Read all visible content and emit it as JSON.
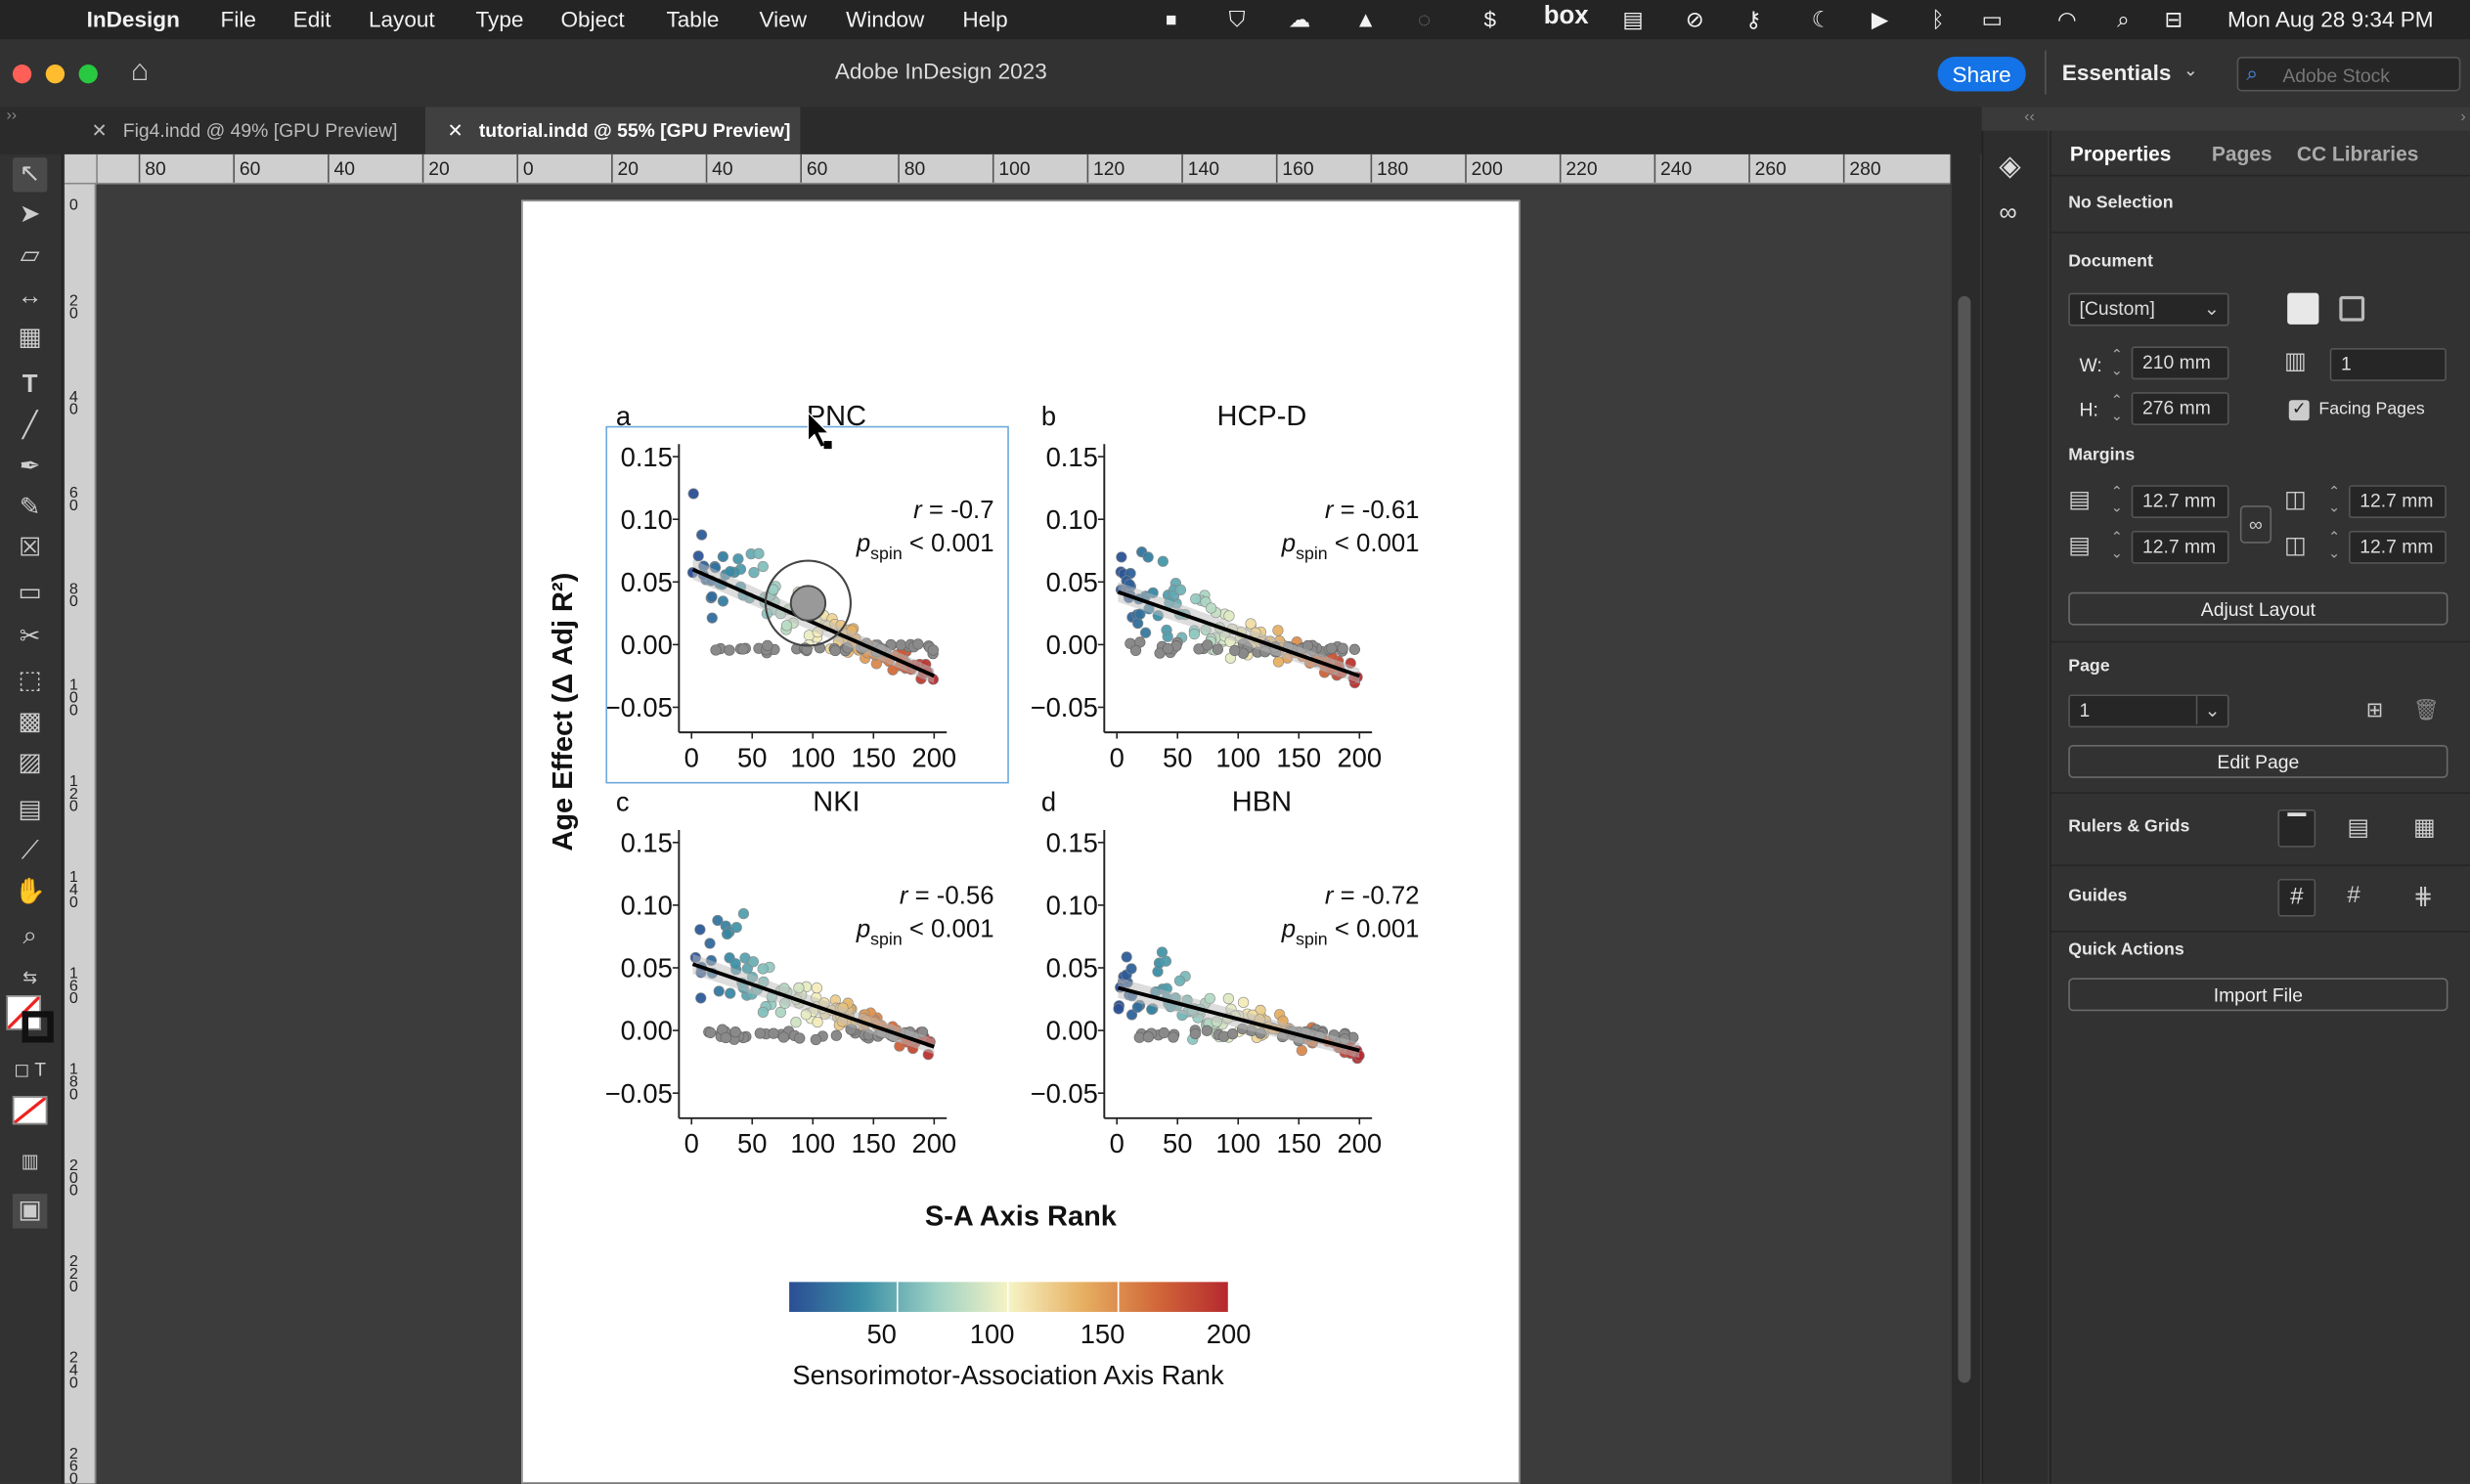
{
  "menubar": {
    "app_name": "InDesign",
    "items": [
      "File",
      "Edit",
      "Layout",
      "Type",
      "Object",
      "Table",
      "View",
      "Window",
      "Help"
    ],
    "tray_box": "box",
    "datetime": "Mon Aug 28  9:34 PM"
  },
  "window": {
    "title": "Adobe InDesign 2023",
    "share_label": "Share",
    "workspace_label": "Essentials",
    "stock_placeholder": "Adobe Stock"
  },
  "tabs": [
    {
      "label": "Fig4.indd @ 49% [GPU Preview]",
      "active": false
    },
    {
      "label": "tutorial.indd @ 55% [GPU Preview]",
      "active": true
    }
  ],
  "rulers": {
    "horizontal": [
      "80",
      "60",
      "40",
      "20",
      "0",
      "20",
      "40",
      "60",
      "80",
      "100",
      "120",
      "140",
      "160",
      "180",
      "200",
      "220",
      "240",
      "260",
      "280"
    ],
    "vertical": [
      "0",
      "20",
      "40",
      "60",
      "80",
      "100",
      "120",
      "140",
      "160",
      "180",
      "200",
      "220",
      "240",
      "260"
    ]
  },
  "panel": {
    "tabs": [
      "Properties",
      "Pages",
      "CC Libraries"
    ],
    "selection": "No Selection",
    "document_heading": "Document",
    "preset": "[Custom]",
    "width_label": "W:",
    "width": "210 mm",
    "height_label": "H:",
    "height": "276 mm",
    "pages_count": "1",
    "facing_pages_label": "Facing Pages",
    "facing_pages_checked": true,
    "margins_heading": "Margins",
    "margin_top": "12.7 mm",
    "margin_bottom": "12.7 mm",
    "margin_left": "12.7 mm",
    "margin_right": "12.7 mm",
    "adjust_layout_label": "Adjust Layout",
    "page_heading": "Page",
    "page_value": "1",
    "edit_page_label": "Edit Page",
    "rulers_grids_heading": "Rulers & Grids",
    "guides_heading": "Guides",
    "quick_actions_heading": "Quick Actions",
    "import_file_label": "Import File"
  },
  "chart_data": {
    "type": "scatter",
    "ylabel": "Age Effect (Δ Adj R²)",
    "xlabel": "S-A Axis Rank",
    "xticks": [
      "0",
      "50",
      "100",
      "150",
      "200"
    ],
    "yticks": [
      "0.15",
      "0.10",
      "0.05",
      "0.00",
      "−0.05"
    ],
    "xlim": [
      0,
      200
    ],
    "ylim": [
      -0.07,
      0.16
    ],
    "colorbar": {
      "title": "Sensorimotor-Association Axis Rank",
      "ticks": [
        "50",
        "100",
        "150",
        "200"
      ],
      "range": [
        1,
        200
      ],
      "colors": [
        "#2b4e94",
        "#3b8fa6",
        "#9cd0c4",
        "#f6f3c4",
        "#e6b062",
        "#d2693a",
        "#b5282e"
      ]
    },
    "stat_r_label": "r",
    "stat_p_label": "p",
    "stat_p_sub": "spin",
    "panels": [
      {
        "letter": "a",
        "title": "PNC",
        "r": "= -0.7",
        "p": "< 0.001",
        "fit": [
          0.06,
          -0.025
        ]
      },
      {
        "letter": "b",
        "title": "HCP-D",
        "r": "= -0.61",
        "p": "< 0.001",
        "fit": [
          0.042,
          -0.025
        ]
      },
      {
        "letter": "c",
        "title": "NKI",
        "r": "= -0.56",
        "p": "< 0.001",
        "fit": [
          0.053,
          -0.013
        ]
      },
      {
        "letter": "d",
        "title": "HBN",
        "r": "= -0.72",
        "p": "< 0.001",
        "fit": [
          0.034,
          -0.016
        ]
      }
    ]
  }
}
